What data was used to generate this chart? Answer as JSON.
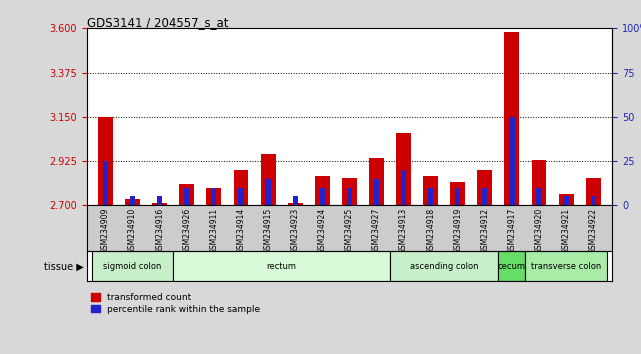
{
  "title": "GDS3141 / 204557_s_at",
  "samples": [
    "GSM234909",
    "GSM234910",
    "GSM234916",
    "GSM234926",
    "GSM234911",
    "GSM234914",
    "GSM234915",
    "GSM234923",
    "GSM234924",
    "GSM234925",
    "GSM234927",
    "GSM234913",
    "GSM234918",
    "GSM234919",
    "GSM234912",
    "GSM234917",
    "GSM234920",
    "GSM234921",
    "GSM234922"
  ],
  "red_values": [
    3.15,
    2.73,
    2.71,
    2.81,
    2.79,
    2.88,
    2.96,
    2.71,
    2.85,
    2.84,
    2.94,
    3.07,
    2.85,
    2.82,
    2.88,
    3.58,
    2.93,
    2.76,
    2.84
  ],
  "blue_values_pct": [
    25,
    5,
    5,
    10,
    10,
    10,
    15,
    5,
    10,
    10,
    15,
    20,
    10,
    10,
    10,
    50,
    10,
    5,
    5
  ],
  "ylim_left": [
    2.7,
    3.6
  ],
  "ylim_right": [
    0,
    100
  ],
  "yticks_left": [
    2.7,
    2.925,
    3.15,
    3.375,
    3.6
  ],
  "yticks_right": [
    0,
    25,
    50,
    75,
    100
  ],
  "hlines": [
    2.925,
    3.15,
    3.375
  ],
  "tissue_groups": [
    {
      "label": "sigmoid colon",
      "start": 0,
      "end": 3,
      "color": "#c8f0c8"
    },
    {
      "label": "rectum",
      "start": 3,
      "end": 11,
      "color": "#d8fad8"
    },
    {
      "label": "ascending colon",
      "start": 11,
      "end": 15,
      "color": "#c8f0c8"
    },
    {
      "label": "cecum",
      "start": 15,
      "end": 16,
      "color": "#66dd66"
    },
    {
      "label": "transverse colon",
      "start": 16,
      "end": 19,
      "color": "#a8eca8"
    }
  ],
  "red_color": "#cc0000",
  "blue_color": "#2222cc",
  "base_value": 2.7,
  "background_color": "#d8d8d8",
  "plot_bg": "#ffffff",
  "xlabel_bg": "#cccccc",
  "left_tick_color": "#cc0000",
  "right_tick_color": "#2222bb"
}
